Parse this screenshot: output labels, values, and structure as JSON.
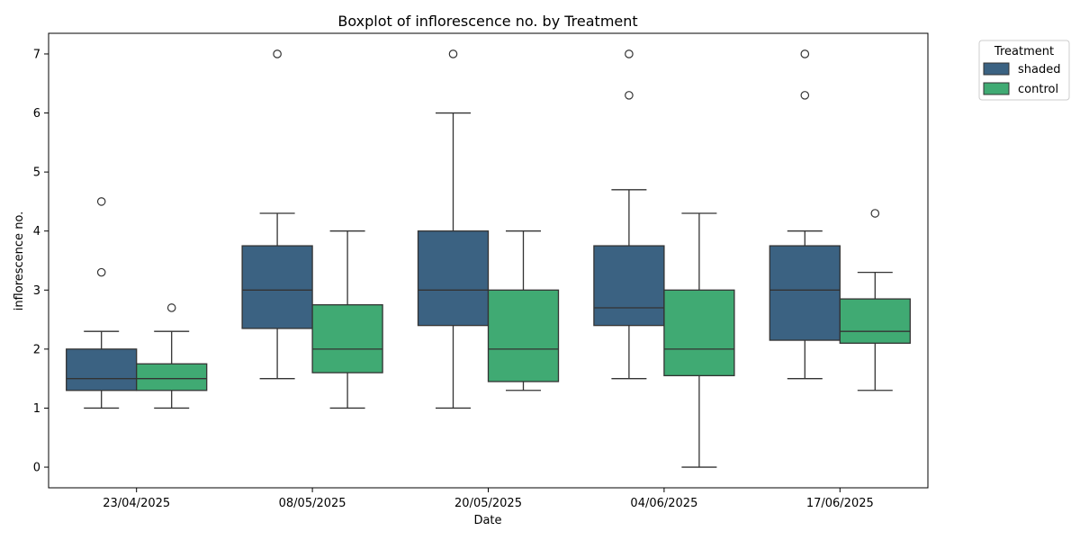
{
  "chart_data": {
    "type": "boxplot",
    "title": "Boxplot of inflorescence no. by Treatment",
    "xlabel": "Date",
    "ylabel": "inflorescence no.",
    "categories": [
      "23/04/2025",
      "08/05/2025",
      "20/05/2025",
      "04/06/2025",
      "17/06/2025"
    ],
    "ylim": [
      -0.35,
      7.35
    ],
    "yticks": [
      "0",
      "1",
      "2",
      "3",
      "4",
      "5",
      "6",
      "7"
    ],
    "grid": false,
    "legend": {
      "title": "Treatment",
      "placement": "outside-top-right"
    },
    "series": [
      {
        "name": "shaded",
        "color": "#3b6282",
        "boxes": [
          {
            "whisker_low": 1.0,
            "q1": 1.3,
            "median": 1.5,
            "q3": 2.0,
            "whisker_high": 2.3,
            "outliers": [
              3.3,
              4.5
            ]
          },
          {
            "whisker_low": 1.5,
            "q1": 2.35,
            "median": 3.0,
            "q3": 3.75,
            "whisker_high": 4.3,
            "outliers": [
              7.0
            ]
          },
          {
            "whisker_low": 1.0,
            "q1": 2.4,
            "median": 3.0,
            "q3": 4.0,
            "whisker_high": 6.0,
            "outliers": [
              7.0
            ]
          },
          {
            "whisker_low": 1.5,
            "q1": 2.4,
            "median": 2.7,
            "q3": 3.75,
            "whisker_high": 4.7,
            "outliers": [
              6.3,
              7.0
            ]
          },
          {
            "whisker_low": 1.5,
            "q1": 2.15,
            "median": 3.0,
            "q3": 3.75,
            "whisker_high": 4.0,
            "outliers": [
              6.3,
              7.0
            ]
          }
        ]
      },
      {
        "name": "control",
        "color": "#40aa73",
        "boxes": [
          {
            "whisker_low": 1.0,
            "q1": 1.3,
            "median": 1.5,
            "q3": 1.75,
            "whisker_high": 2.3,
            "outliers": [
              2.7
            ]
          },
          {
            "whisker_low": 1.0,
            "q1": 1.6,
            "median": 2.0,
            "q3": 2.75,
            "whisker_high": 4.0,
            "outliers": []
          },
          {
            "whisker_low": 1.3,
            "q1": 1.45,
            "median": 2.0,
            "q3": 3.0,
            "whisker_high": 4.0,
            "outliers": []
          },
          {
            "whisker_low": 0.0,
            "q1": 1.55,
            "median": 2.0,
            "q3": 3.0,
            "whisker_high": 4.3,
            "outliers": []
          },
          {
            "whisker_low": 1.3,
            "q1": 2.1,
            "median": 2.3,
            "q3": 2.85,
            "whisker_high": 3.3,
            "outliers": [
              4.3
            ]
          }
        ]
      }
    ]
  }
}
